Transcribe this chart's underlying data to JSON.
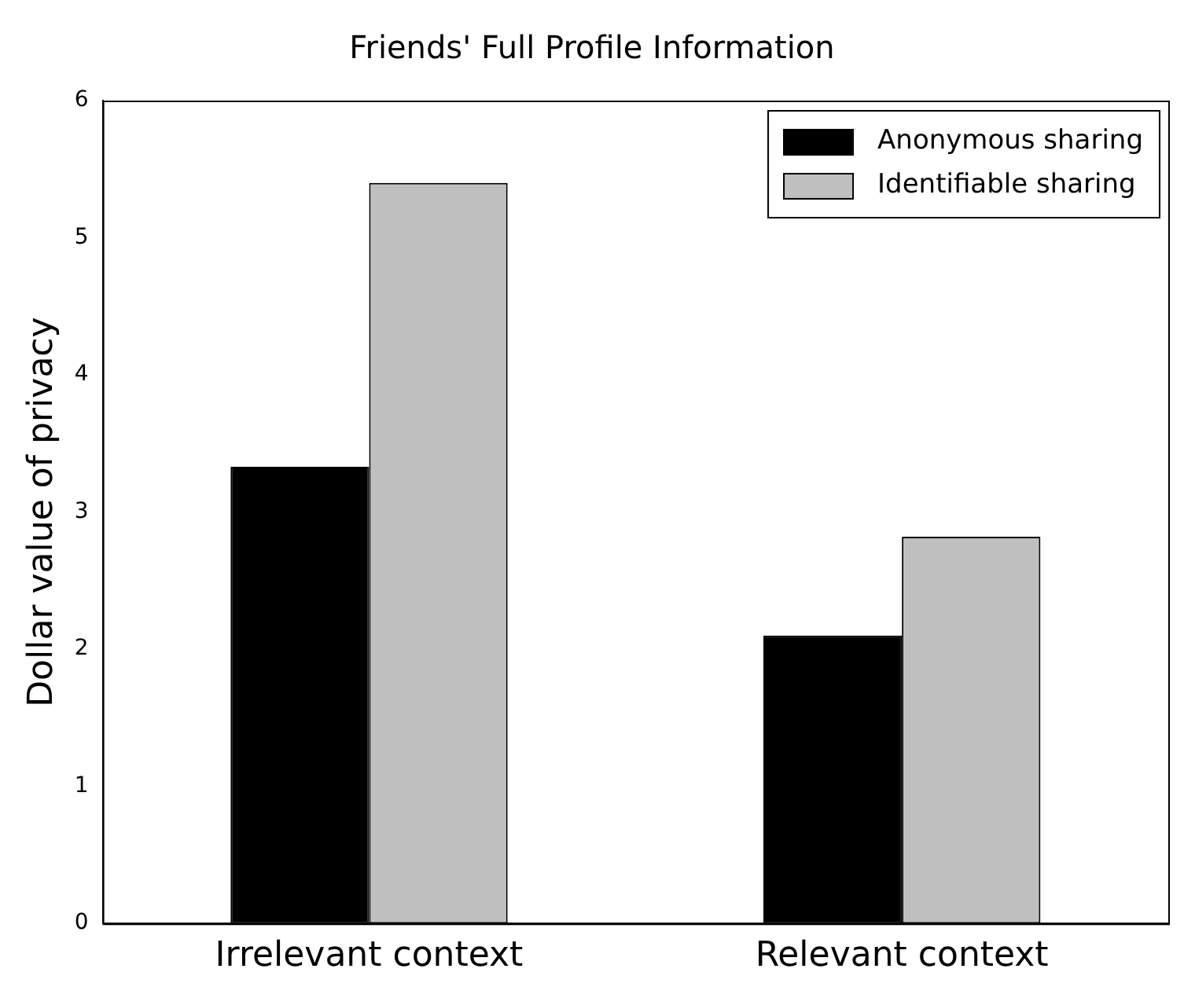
{
  "chart_data": {
    "type": "bar",
    "title": "Friends' Full Profile Information",
    "ylabel": "Dollar value of privacy",
    "categories": [
      "Irrelevant context",
      "Relevant context"
    ],
    "series": [
      {
        "name": "Anonymous sharing",
        "color": "#000000",
        "values": [
          3.33,
          2.1
        ]
      },
      {
        "name": "Identifiable sharing",
        "color": "#bfbfbf",
        "values": [
          5.4,
          2.82
        ]
      }
    ],
    "ylim": [
      0,
      6
    ],
    "yticks": [
      0,
      1,
      2,
      3,
      4,
      5,
      6
    ],
    "legend": "top right"
  }
}
